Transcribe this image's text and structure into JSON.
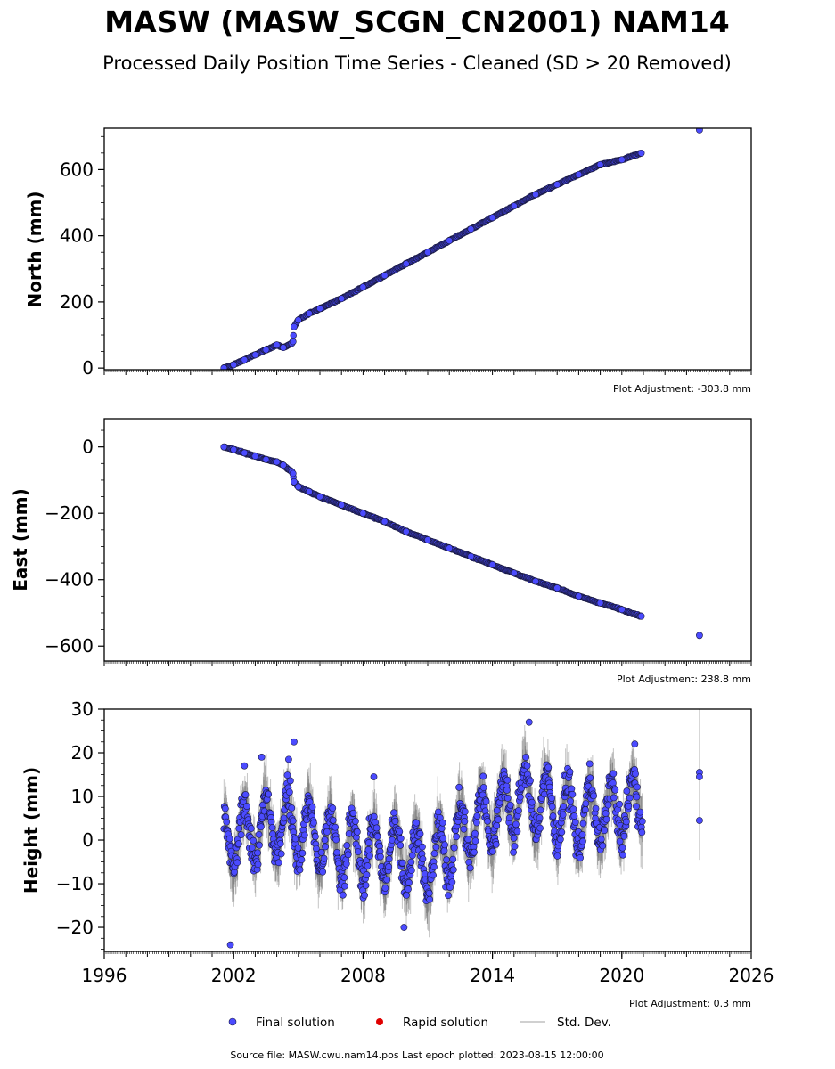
{
  "header": {
    "title": "MASW (MASW_SCGN_CN2001) NAM14",
    "subtitle": "Processed Daily Position Time Series - Cleaned (SD > 20 Removed)"
  },
  "legend": {
    "final": "Final solution",
    "rapid": "Rapid solution",
    "std": "Std. Dev."
  },
  "footer": {
    "source": "Source file: MASW.cwu.nam14.pos  Last epoch plotted: 2023-08-15 12:00:00"
  },
  "colors": {
    "final_fill": "#4b4bff",
    "final_edge": "#1a1a40",
    "rapid": "#e00000",
    "stddev": "#555555",
    "stddev_legend": "#d0d0d0"
  },
  "chart_data": [
    {
      "type": "scatter",
      "panel": "north",
      "ylabel": "North (mm)",
      "adjustment": "Plot Adjustment: -303.8 mm",
      "xlim": [
        1996,
        2026
      ],
      "ylim": [
        -5,
        725
      ],
      "yticks": [
        0,
        200,
        400,
        600
      ],
      "ytick_labels": [
        "0",
        "200",
        "400",
        "600"
      ],
      "x_tick_labels_visible": false,
      "series": [
        {
          "name": "Final solution",
          "x": [
            2001.55,
            2002.0,
            2002.5,
            2003.0,
            2003.5,
            2004.0,
            2004.3,
            2004.7,
            2004.75,
            2004.8,
            2005.0,
            2005.5,
            2006.0,
            2007.0,
            2008.0,
            2009.0,
            2010.0,
            2011.0,
            2012.0,
            2013.0,
            2014.0,
            2015.0,
            2016.0,
            2017.0,
            2018.0,
            2019.0,
            2020.0,
            2020.9,
            2023.6
          ],
          "y": [
            0,
            10,
            25,
            40,
            55,
            70,
            62,
            75,
            80,
            125,
            145,
            165,
            180,
            210,
            245,
            280,
            315,
            350,
            385,
            420,
            455,
            490,
            525,
            555,
            585,
            615,
            630,
            650,
            720
          ]
        }
      ]
    },
    {
      "type": "scatter",
      "panel": "east",
      "ylabel": "East (mm)",
      "adjustment": "Plot Adjustment: 238.8 mm",
      "xlim": [
        1996,
        2026
      ],
      "ylim": [
        -645,
        85
      ],
      "yticks": [
        0,
        -200,
        -400,
        -600
      ],
      "ytick_labels": [
        "0",
        "−200",
        "−400",
        "−600"
      ],
      "x_tick_labels_visible": false,
      "series": [
        {
          "name": "Final solution",
          "x": [
            2001.55,
            2002.0,
            2002.5,
            2003.0,
            2003.5,
            2004.0,
            2004.3,
            2004.7,
            2004.75,
            2004.8,
            2005.0,
            2005.5,
            2006.0,
            2007.0,
            2008.0,
            2009.0,
            2010.0,
            2011.0,
            2012.0,
            2013.0,
            2014.0,
            2015.0,
            2016.0,
            2017.0,
            2018.0,
            2019.0,
            2020.0,
            2020.9,
            2023.6
          ],
          "y": [
            0,
            -8,
            -18,
            -28,
            -38,
            -45,
            -55,
            -75,
            -80,
            -105,
            -120,
            -135,
            -150,
            -175,
            -200,
            -225,
            -255,
            -280,
            -305,
            -330,
            -355,
            -380,
            -405,
            -425,
            -450,
            -470,
            -490,
            -510,
            -568
          ]
        }
      ]
    },
    {
      "type": "scatter",
      "panel": "height",
      "ylabel": "Height (mm)",
      "adjustment": "Plot Adjustment: 0.3 mm",
      "xlim": [
        1996,
        2026
      ],
      "ylim": [
        -25.5,
        30
      ],
      "yticks": [
        30,
        20,
        10,
        0,
        -10,
        -20
      ],
      "ytick_labels": [
        "30",
        "20",
        "10",
        "0",
        "−10",
        "−20"
      ],
      "xticks": [
        1996,
        2002,
        2008,
        2014,
        2020,
        2026
      ],
      "xtick_labels": [
        "1996",
        "2002",
        "2008",
        "2014",
        "2020",
        "2026"
      ],
      "noise": {
        "start": 2001.55,
        "end": 2020.95,
        "annual_amplitude": 7,
        "spread": 5,
        "trend_points": {
          "x": [
            2001.55,
            2004.5,
            2007.0,
            2010.0,
            2011.0,
            2013.0,
            2015.5,
            2018.0,
            2020.9
          ],
          "y": [
            0,
            4,
            -2,
            -3,
            -6,
            3,
            10,
            5,
            8
          ]
        }
      },
      "series": [
        {
          "name": "Final solution",
          "outliers_x": [
            2001.85,
            2002.5,
            2003.3,
            2004.8,
            2004.55,
            2009.9,
            2015.7,
            2008.5,
            2020.6
          ],
          "outliers_y": [
            -24,
            17,
            19,
            22.5,
            18.5,
            -20,
            27,
            14.5,
            22
          ],
          "late_x": [
            2023.6,
            2023.6,
            2023.6
          ],
          "late_y": [
            15.5,
            14.5,
            4.5
          ]
        }
      ]
    }
  ]
}
